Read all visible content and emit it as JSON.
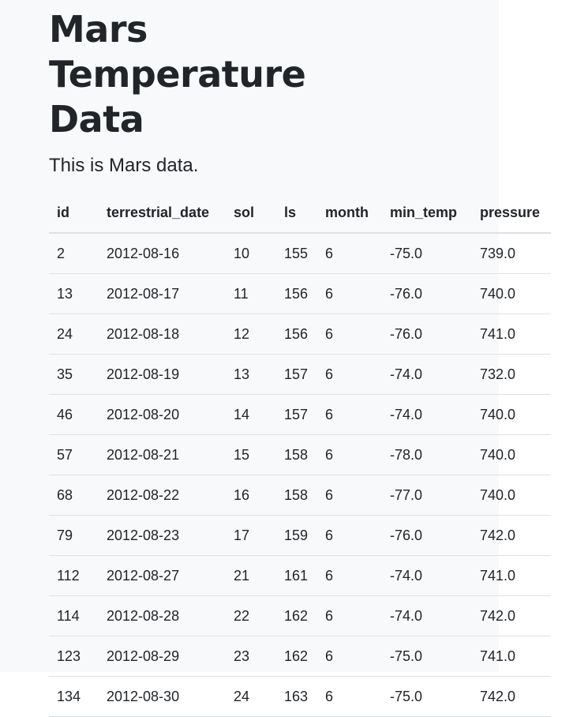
{
  "page": {
    "title": "Mars Temperature Data",
    "lead": "This is Mars data."
  },
  "table": {
    "columns": [
      "id",
      "terrestrial_date",
      "sol",
      "ls",
      "month",
      "min_temp",
      "pressure"
    ],
    "rows": [
      [
        "2",
        "2012-08-16",
        "10",
        "155",
        "6",
        "-75.0",
        "739.0"
      ],
      [
        "13",
        "2012-08-17",
        "11",
        "156",
        "6",
        "-76.0",
        "740.0"
      ],
      [
        "24",
        "2012-08-18",
        "12",
        "156",
        "6",
        "-76.0",
        "741.0"
      ],
      [
        "35",
        "2012-08-19",
        "13",
        "157",
        "6",
        "-74.0",
        "732.0"
      ],
      [
        "46",
        "2012-08-20",
        "14",
        "157",
        "6",
        "-74.0",
        "740.0"
      ],
      [
        "57",
        "2012-08-21",
        "15",
        "158",
        "6",
        "-78.0",
        "740.0"
      ],
      [
        "68",
        "2012-08-22",
        "16",
        "158",
        "6",
        "-77.0",
        "740.0"
      ],
      [
        "79",
        "2012-08-23",
        "17",
        "159",
        "6",
        "-76.0",
        "742.0"
      ],
      [
        "112",
        "2012-08-27",
        "21",
        "161",
        "6",
        "-74.0",
        "741.0"
      ],
      [
        "114",
        "2012-08-28",
        "22",
        "162",
        "6",
        "-74.0",
        "742.0"
      ],
      [
        "123",
        "2012-08-29",
        "23",
        "162",
        "6",
        "-75.0",
        "741.0"
      ],
      [
        "134",
        "2012-08-30",
        "24",
        "163",
        "6",
        "-75.0",
        "742.0"
      ]
    ]
  }
}
